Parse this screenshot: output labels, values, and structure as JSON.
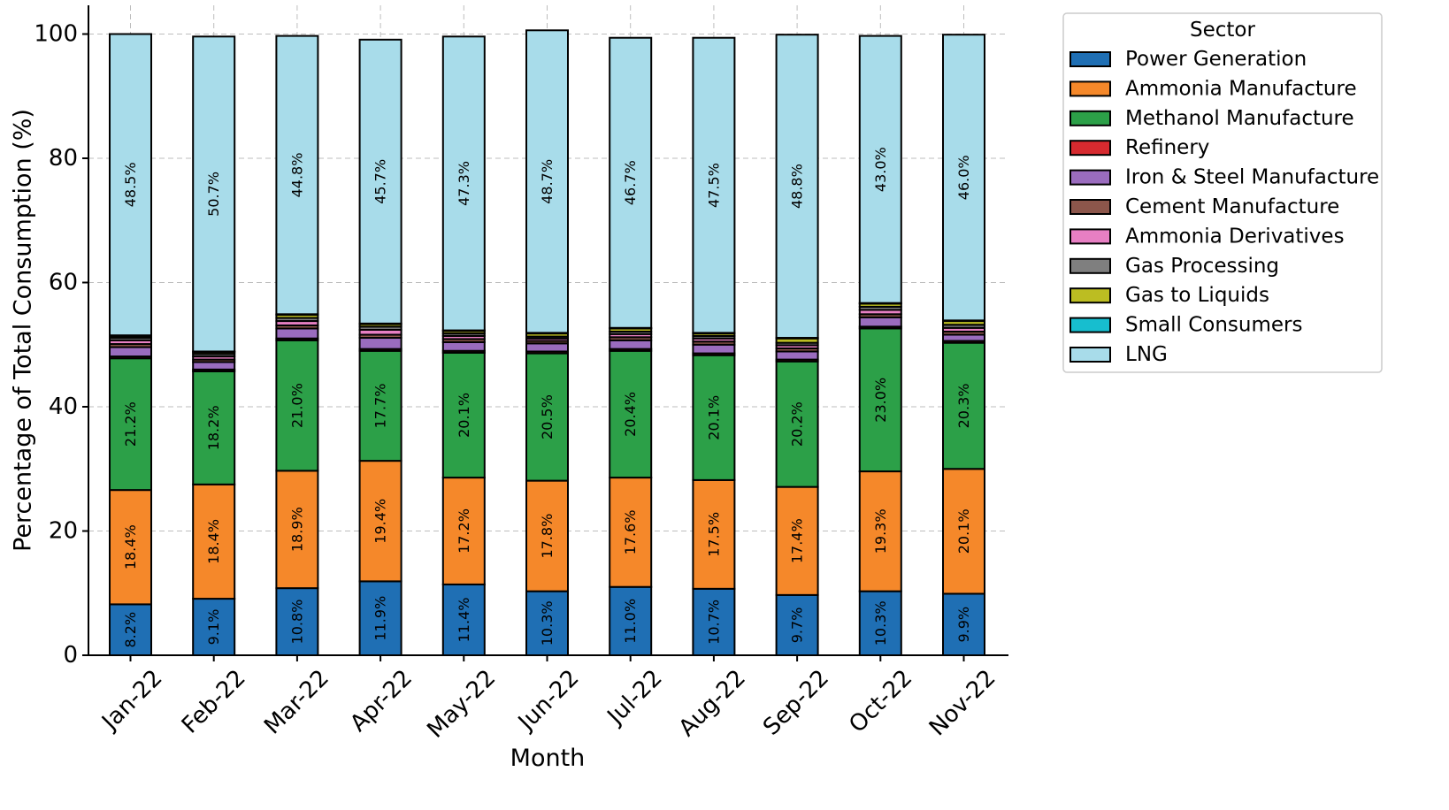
{
  "chart_data": {
    "type": "stacked-bar",
    "title": "",
    "xlabel": "Month",
    "ylabel": "Percentage of Total Consumption (%)",
    "ylim": [
      0,
      105
    ],
    "yticks": [
      0,
      20,
      40,
      60,
      80,
      100
    ],
    "grid": true,
    "legend_title": "Sector",
    "legend_position": "outside-right-top",
    "categories": [
      "Jan-22",
      "Feb-22",
      "Mar-22",
      "Apr-22",
      "May-22",
      "Jun-22",
      "Jul-22",
      "Aug-22",
      "Sep-22",
      "Oct-22",
      "Nov-22"
    ],
    "series": [
      {
        "name": "Power Generation",
        "color": "#1f6fb4",
        "values": [
          8.2,
          9.1,
          10.8,
          11.9,
          11.4,
          10.3,
          11.0,
          10.7,
          9.7,
          10.3,
          9.9
        ],
        "labels": [
          "8.2%",
          "9.1%",
          "10.8%",
          "11.9%",
          "11.4%",
          "10.3%",
          "11.0%",
          "10.7%",
          "9.7%",
          "10.3%",
          "9.9%"
        ]
      },
      {
        "name": "Ammonia Manufacture",
        "color": "#f5882a",
        "values": [
          18.4,
          18.4,
          18.9,
          19.4,
          17.2,
          17.8,
          17.6,
          17.5,
          17.4,
          19.3,
          20.1
        ],
        "labels": [
          "18.4%",
          "18.4%",
          "18.9%",
          "19.4%",
          "17.2%",
          "17.8%",
          "17.6%",
          "17.5%",
          "17.4%",
          "19.3%",
          "20.1%"
        ]
      },
      {
        "name": "Methanol Manufacture",
        "color": "#2ca048",
        "values": [
          21.2,
          18.2,
          21.0,
          17.7,
          20.1,
          20.5,
          20.4,
          20.1,
          20.2,
          23.0,
          20.3
        ],
        "labels": [
          "21.2%",
          "18.2%",
          "21.0%",
          "17.7%",
          "20.1%",
          "20.5%",
          "20.4%",
          "20.1%",
          "20.2%",
          "23.0%",
          "20.3%"
        ]
      },
      {
        "name": "Refinery",
        "color": "#d62a2f",
        "values": [
          0.3,
          0.3,
          0.3,
          0.3,
          0.3,
          0.3,
          0.3,
          0.3,
          0.3,
          0.3,
          0.3
        ]
      },
      {
        "name": "Iron & Steel Manufacture",
        "color": "#9a6cbe",
        "values": [
          1.5,
          1.2,
          1.6,
          1.8,
          1.4,
          1.3,
          1.4,
          1.4,
          1.3,
          1.5,
          1.0
        ]
      },
      {
        "name": "Cement Manufacture",
        "color": "#8c564b",
        "values": [
          0.5,
          0.4,
          0.5,
          0.5,
          0.5,
          0.4,
          0.5,
          0.5,
          0.5,
          0.5,
          0.5
        ]
      },
      {
        "name": "Ammonia Derivatives",
        "color": "#e77fc3",
        "values": [
          0.6,
          0.5,
          0.7,
          0.8,
          0.5,
          0.4,
          0.5,
          0.5,
          0.5,
          0.7,
          0.6
        ]
      },
      {
        "name": "Gas Processing",
        "color": "#7f7f7f",
        "values": [
          0.4,
          0.4,
          0.5,
          0.5,
          0.4,
          0.3,
          0.4,
          0.4,
          0.4,
          0.5,
          0.5
        ]
      },
      {
        "name": "Gas to Liquids",
        "color": "#bcbd22",
        "values": [
          0.3,
          0.3,
          0.5,
          0.4,
          0.4,
          0.5,
          0.5,
          0.4,
          0.7,
          0.5,
          0.6
        ]
      },
      {
        "name": "Small Consumers",
        "color": "#17becf",
        "values": [
          0.1,
          0.1,
          0.1,
          0.1,
          0.1,
          0.1,
          0.1,
          0.1,
          0.1,
          0.1,
          0.1
        ]
      },
      {
        "name": "LNG",
        "color": "#a8dcea",
        "values": [
          48.5,
          50.7,
          44.8,
          45.7,
          47.3,
          48.7,
          46.7,
          47.5,
          48.8,
          43.0,
          46.0
        ],
        "labels": [
          "48.5%",
          "50.7%",
          "44.8%",
          "45.7%",
          "47.3%",
          "48.7%",
          "46.7%",
          "47.5%",
          "48.8%",
          "43.0%",
          "46.0%"
        ]
      }
    ]
  }
}
